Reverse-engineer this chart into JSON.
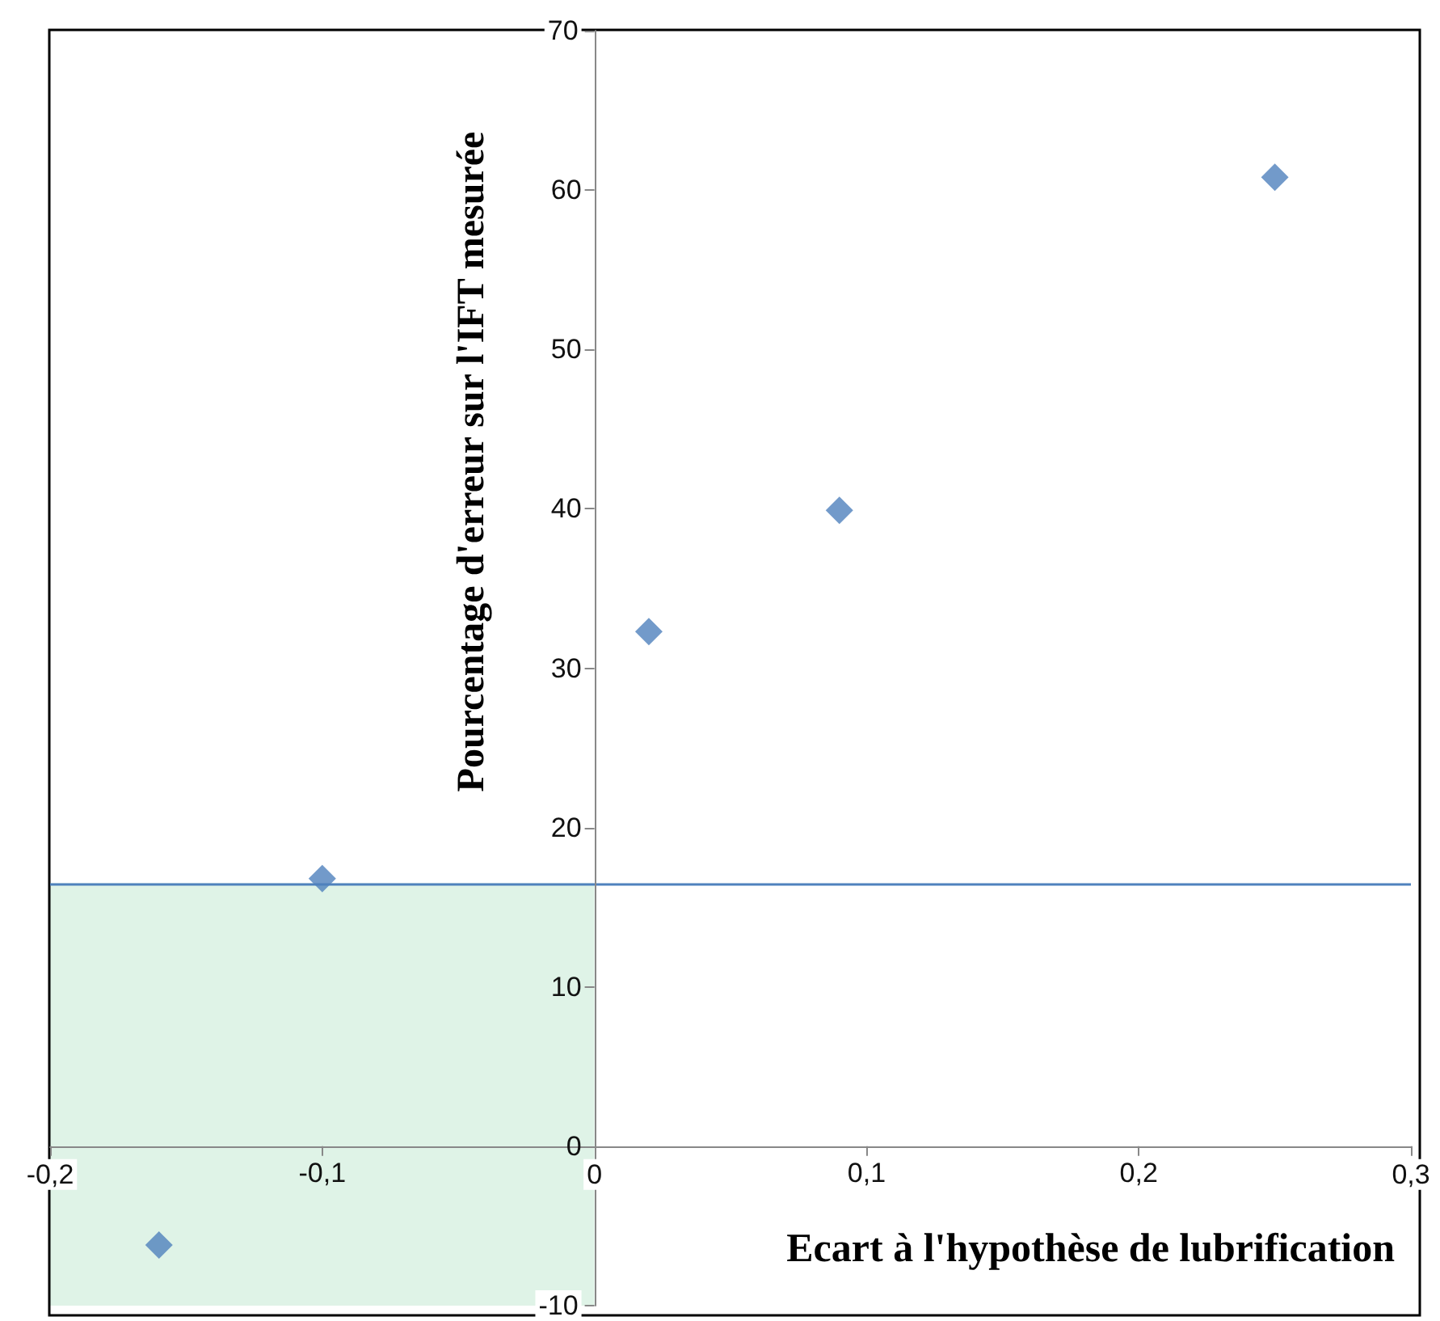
{
  "chart_data": {
    "type": "scatter",
    "xlabel": "Ecart à l'hypothèse de lubrification",
    "ylabel": "Pourcentage d'erreur sur l'IFT mesurée",
    "x": [
      -0.16,
      -0.1,
      0.02,
      0.09,
      0.25
    ],
    "series": [
      {
        "color": "#4f81bd",
        "values": [
          -6.2,
          16.8,
          32.3,
          39.9,
          60.8
        ]
      }
    ],
    "xlim": [
      -0.2,
      0.3
    ],
    "xticks": [
      {
        "value": -0.2,
        "label": "-0,2"
      },
      {
        "value": -0.1,
        "label": "-0,1"
      },
      {
        "value": 0,
        "label": "0"
      },
      {
        "value": 0.1,
        "label": "0,1"
      },
      {
        "value": 0.2,
        "label": "0,2"
      },
      {
        "value": 0.3,
        "label": "0,3"
      }
    ],
    "ylim": [
      -10,
      70
    ],
    "yticks": [
      -10,
      0,
      10,
      20,
      30,
      40,
      50,
      60,
      70
    ],
    "ref_lines": [
      {
        "axis": "y",
        "value": 16.5,
        "color": "#4f81bd"
      }
    ],
    "bands": [
      {
        "axis": "x",
        "from": -0.2,
        "to": 0,
        "color": "#dff3e7"
      }
    ],
    "grid": false,
    "marker": "diamond"
  }
}
